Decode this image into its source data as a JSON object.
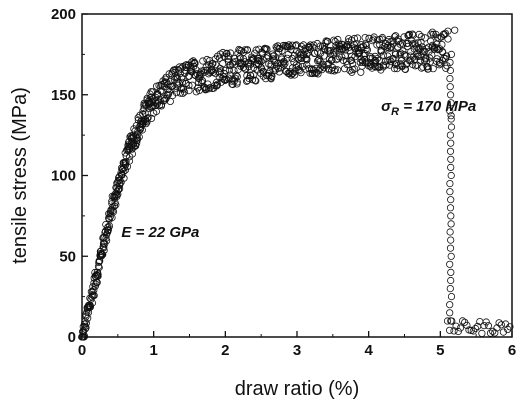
{
  "chart_data": {
    "type": "scatter",
    "title": "",
    "xlabel": "draw ratio (%)",
    "ylabel": "tensile stress (MPa)",
    "xlim": [
      0,
      6
    ],
    "ylim": [
      0,
      200
    ],
    "xticks": [
      "0",
      "1",
      "2",
      "3",
      "4",
      "5",
      "6"
    ],
    "yticks": [
      "0",
      "50",
      "100",
      "150",
      "200"
    ],
    "grid": false,
    "marker": "open-circle",
    "color": "#111111",
    "annotations": [
      {
        "text": "E = 22 GPa",
        "x": 0.55,
        "y": 62
      },
      {
        "text": "σ",
        "sub": "R",
        "after": " = 170 MPa",
        "x": 5.5,
        "y": 143
      }
    ],
    "curve": {
      "description_points": [
        [
          0,
          0
        ],
        [
          0.1,
          20
        ],
        [
          0.2,
          40
        ],
        [
          0.3,
          60
        ],
        [
          0.4,
          78
        ],
        [
          0.5,
          95
        ],
        [
          0.6,
          110
        ],
        [
          0.7,
          123
        ],
        [
          0.8,
          133
        ],
        [
          0.9,
          142
        ],
        [
          1.0,
          149
        ],
        [
          1.2,
          157
        ],
        [
          1.5,
          163
        ],
        [
          2.0,
          167
        ],
        [
          2.5,
          170
        ],
        [
          3.0,
          172
        ],
        [
          3.5,
          173
        ],
        [
          4.0,
          174
        ],
        [
          4.5,
          175
        ],
        [
          5.1,
          176
        ]
      ],
      "spread_low": [
        [
          0.5,
          8
        ],
        [
          1.0,
          12
        ],
        [
          2.0,
          12
        ],
        [
          3.0,
          10
        ],
        [
          5.1,
          10
        ]
      ],
      "spread_high": [
        [
          0.5,
          4
        ],
        [
          1.0,
          6
        ],
        [
          2.0,
          10
        ],
        [
          3.0,
          10
        ],
        [
          5.1,
          14
        ]
      ],
      "failure_points": [
        [
          5.15,
          137
        ],
        [
          5.2,
          190
        ]
      ],
      "tail_x": [
        5.1,
        6.0
      ],
      "tail_y": [
        2,
        10
      ]
    }
  }
}
